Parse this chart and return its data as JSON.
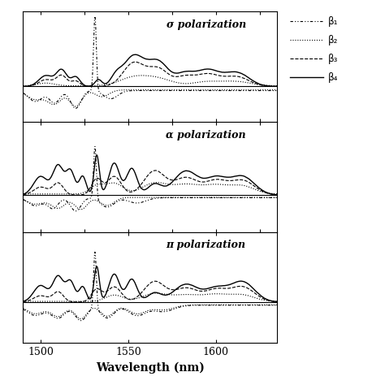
{
  "x_range": [
    1490,
    1635
  ],
  "xlabel": "Wavelength (nm)",
  "panel_labels": [
    "σ polarization",
    "α polarization",
    "π polarization"
  ],
  "legend_labels": [
    "β₁",
    "β₂",
    "β₃",
    "β₄"
  ],
  "line_color": "#000000",
  "background_color": "#ffffff",
  "x_ticks": [
    1500,
    1550,
    1600
  ],
  "x_tick_labels": [
    "1500",
    "1550",
    "1600"
  ]
}
